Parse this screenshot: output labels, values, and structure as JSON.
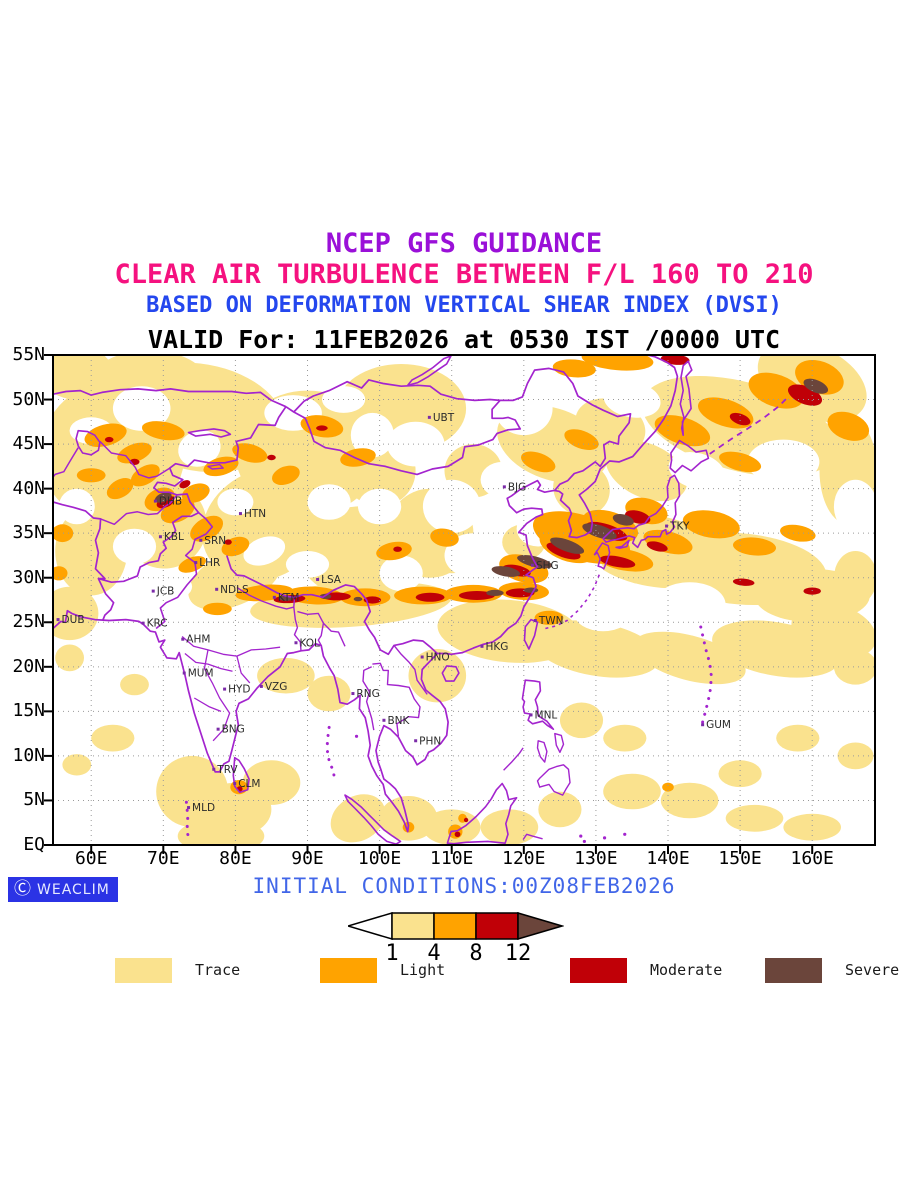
{
  "header": {
    "lines": [
      {
        "text": "NCEP GFS GUIDANCE",
        "color": "#9A10D8"
      },
      {
        "text": "CLEAR AIR TURBULENCE BETWEEN F/L 160 TO 210",
        "color": "#F5117F"
      },
      {
        "text": "BASED ON DEFORMATION VERTICAL SHEAR INDEX (DVSI)",
        "color": "#2447EE"
      },
      {
        "text": "VALID For: 11FEB2026 at 0530 IST /0000 UTC",
        "color": "#000000"
      }
    ]
  },
  "map": {
    "lat_ticks": [
      {
        "label": "55N",
        "value": 55
      },
      {
        "label": "50N",
        "value": 50
      },
      {
        "label": "45N",
        "value": 45
      },
      {
        "label": "40N",
        "value": 40
      },
      {
        "label": "35N",
        "value": 35
      },
      {
        "label": "30N",
        "value": 30
      },
      {
        "label": "25N",
        "value": 25
      },
      {
        "label": "20N",
        "value": 20
      },
      {
        "label": "15N",
        "value": 15
      },
      {
        "label": "10N",
        "value": 10
      },
      {
        "label": "5N",
        "value": 5
      },
      {
        "label": "EQ",
        "value": 0
      }
    ],
    "lon_ticks": [
      {
        "label": "60E",
        "value": 60
      },
      {
        "label": "70E",
        "value": 70
      },
      {
        "label": "80E",
        "value": 80
      },
      {
        "label": "90E",
        "value": 90
      },
      {
        "label": "100E",
        "value": 100
      },
      {
        "label": "110E",
        "value": 110
      },
      {
        "label": "120E",
        "value": 120
      },
      {
        "label": "130E",
        "value": 130
      },
      {
        "label": "140E",
        "value": 140
      },
      {
        "label": "150E",
        "value": 150
      },
      {
        "label": "160E",
        "value": 160
      }
    ],
    "border_color": "#A324CE",
    "grid_color": "#9a9a9a",
    "cities": [
      {
        "code": "UBT",
        "lon": 106.9,
        "lat": 48.0
      },
      {
        "code": "BJG",
        "lon": 117.3,
        "lat": 40.2
      },
      {
        "code": "DHB",
        "lon": 68.9,
        "lat": 38.6
      },
      {
        "code": "HTN",
        "lon": 80.7,
        "lat": 37.2
      },
      {
        "code": "KBL",
        "lon": 69.6,
        "lat": 34.6
      },
      {
        "code": "SRN",
        "lon": 75.2,
        "lat": 34.2
      },
      {
        "code": "LHR",
        "lon": 74.5,
        "lat": 31.7
      },
      {
        "code": "JCB",
        "lon": 68.6,
        "lat": 28.5
      },
      {
        "code": "NDLS",
        "lon": 77.4,
        "lat": 28.7
      },
      {
        "code": "KTM",
        "lon": 85.4,
        "lat": 27.8
      },
      {
        "code": "LSA",
        "lon": 91.4,
        "lat": 29.8
      },
      {
        "code": "DUB",
        "lon": 55.4,
        "lat": 25.3
      },
      {
        "code": "KRC",
        "lon": 67.2,
        "lat": 24.9
      },
      {
        "code": "AHM",
        "lon": 72.7,
        "lat": 23.1
      },
      {
        "code": "KOL",
        "lon": 88.4,
        "lat": 22.7
      },
      {
        "code": "HNO",
        "lon": 105.9,
        "lat": 21.1
      },
      {
        "code": "MUM",
        "lon": 72.9,
        "lat": 19.3
      },
      {
        "code": "HYD",
        "lon": 78.5,
        "lat": 17.5
      },
      {
        "code": "VZG",
        "lon": 83.6,
        "lat": 17.8
      },
      {
        "code": "RNG",
        "lon": 96.3,
        "lat": 17.0
      },
      {
        "code": "BNK",
        "lon": 100.6,
        "lat": 14.0
      },
      {
        "code": "PHN",
        "lon": 105.0,
        "lat": 11.7
      },
      {
        "code": "BNG",
        "lon": 77.6,
        "lat": 13.0
      },
      {
        "code": "TRV",
        "lon": 77.0,
        "lat": 8.5
      },
      {
        "code": "CLM",
        "lon": 79.9,
        "lat": 6.9
      },
      {
        "code": "MLD",
        "lon": 73.5,
        "lat": 4.2
      },
      {
        "code": "SHG",
        "lon": 121.2,
        "lat": 31.4
      },
      {
        "code": "TKY",
        "lon": 139.8,
        "lat": 35.8
      },
      {
        "code": "TWN",
        "lon": 121.6,
        "lat": 25.2
      },
      {
        "code": "HKG",
        "lon": 114.2,
        "lat": 22.3
      },
      {
        "code": "MNL",
        "lon": 121.0,
        "lat": 14.6
      },
      {
        "code": "GUM",
        "lon": 144.8,
        "lat": 13.5
      }
    ]
  },
  "severity": {
    "levels": [
      {
        "label": "Trace",
        "color": "#FAE28E",
        "range": "1-4"
      },
      {
        "label": "Light",
        "color": "#FFA300",
        "range": "4-8"
      },
      {
        "label": "Moderate",
        "color": "#C00007",
        "range": "8-12"
      },
      {
        "label": "Severe",
        "color": "#6B453B",
        "range": ">12"
      }
    ]
  },
  "colorbar": {
    "values": [
      "1",
      "4",
      "8",
      "12"
    ]
  },
  "footer": {
    "initial_conditions": "INITIAL CONDITIONS:00Z08FEB2026",
    "initial_conditions_color": "#4166E8",
    "logo_text": "WEACLIM",
    "logo_bg": "#2B33E5"
  },
  "turbulence_regions": {
    "trace": [
      [
        63,
        44,
        10,
        8,
        -20
      ],
      [
        75,
        48,
        12,
        6,
        10
      ],
      [
        90,
        44,
        10,
        7,
        0
      ],
      [
        103,
        49,
        9,
        5,
        0
      ],
      [
        84,
        36,
        9,
        6,
        -30
      ],
      [
        97,
        33,
        8,
        5,
        -10
      ],
      [
        107,
        35,
        6,
        5,
        0
      ],
      [
        96,
        27,
        14,
        2.5,
        -4
      ],
      [
        80,
        30,
        7,
        3,
        -25
      ],
      [
        70,
        36,
        6,
        5,
        -30
      ],
      [
        60,
        33,
        5,
        5,
        0
      ],
      [
        57,
        26,
        4,
        3,
        0
      ],
      [
        124,
        45,
        8,
        4,
        20
      ],
      [
        137,
        42,
        6,
        3,
        25
      ],
      [
        150,
        47,
        14,
        5,
        15
      ],
      [
        160,
        52,
        8,
        4,
        25
      ],
      [
        138,
        33,
        10,
        4,
        10
      ],
      [
        150,
        31,
        12,
        4,
        5
      ],
      [
        160,
        28,
        8,
        3,
        0
      ],
      [
        118,
        24,
        10,
        3.5,
        5
      ],
      [
        130,
        22,
        9,
        3,
        10
      ],
      [
        143,
        21,
        8,
        2.5,
        15
      ],
      [
        155,
        22,
        9,
        3,
        10
      ],
      [
        163,
        24,
        6,
        3,
        15
      ],
      [
        108,
        19,
        4,
        3,
        0
      ],
      [
        87,
        19,
        4,
        2,
        0
      ],
      [
        93,
        17,
        3,
        2,
        0
      ],
      [
        63,
        12,
        3,
        1.5,
        0
      ],
      [
        58,
        9,
        2,
        1.2,
        0
      ],
      [
        74,
        6,
        5,
        4,
        0
      ],
      [
        80,
        4,
        5,
        3,
        0
      ],
      [
        85,
        7,
        4,
        2.5,
        0
      ],
      [
        78,
        1,
        6,
        2,
        0
      ],
      [
        97,
        3,
        4,
        2.5,
        -30
      ],
      [
        104,
        3,
        4,
        2.5,
        0
      ],
      [
        110,
        2,
        4,
        2,
        0
      ],
      [
        118,
        2,
        4,
        2,
        0
      ],
      [
        125,
        4,
        3,
        2,
        0
      ],
      [
        135,
        6,
        4,
        2,
        0
      ],
      [
        143,
        5,
        4,
        2,
        0
      ],
      [
        152,
        3,
        4,
        1.5,
        0
      ],
      [
        160,
        2,
        4,
        1.5,
        0
      ],
      [
        150,
        8,
        3,
        1.5,
        0
      ],
      [
        158,
        12,
        3,
        1.5,
        0
      ],
      [
        166,
        10,
        2.5,
        1.5,
        0
      ],
      [
        166,
        20,
        3,
        2,
        0
      ],
      [
        166,
        30,
        3,
        3,
        0
      ],
      [
        128,
        14,
        3,
        2,
        0
      ],
      [
        134,
        12,
        3,
        1.5,
        0
      ],
      [
        110,
        33,
        3,
        2.5,
        0
      ],
      [
        132,
        47,
        5,
        3,
        20
      ],
      [
        58,
        53,
        5,
        3,
        0
      ],
      [
        68,
        52,
        8,
        3.5,
        0
      ],
      [
        100,
        42,
        5,
        4,
        0
      ],
      [
        113,
        42,
        4,
        3,
        0
      ],
      [
        128,
        40,
        4,
        3,
        30
      ],
      [
        120,
        34,
        3,
        2,
        0
      ],
      [
        165,
        42,
        4,
        6,
        0
      ],
      [
        57,
        21,
        2,
        1.5,
        0
      ],
      [
        66,
        18,
        2,
        1.2,
        0
      ]
    ],
    "white_gaps": [
      [
        67,
        49,
        4,
        2.5,
        0
      ],
      [
        75,
        44.5,
        3,
        2,
        -20
      ],
      [
        88,
        48.5,
        4,
        2,
        0
      ],
      [
        99,
        46,
        3,
        2.5,
        0
      ],
      [
        105,
        45,
        4,
        2.5,
        0
      ],
      [
        93,
        38.5,
        3,
        2,
        0
      ],
      [
        90,
        31.5,
        3,
        1.5,
        0
      ],
      [
        103,
        30.5,
        3,
        2,
        0
      ],
      [
        113,
        32.5,
        4,
        2.5,
        0
      ],
      [
        110,
        38,
        4,
        3,
        0
      ],
      [
        122,
        35.5,
        3,
        2,
        0
      ],
      [
        117,
        41,
        3,
        2,
        0
      ],
      [
        144,
        42,
        4,
        2,
        15
      ],
      [
        152,
        38,
        6,
        3,
        0
      ],
      [
        143,
        27,
        5,
        2.5,
        0
      ],
      [
        131,
        26,
        4,
        2,
        0
      ],
      [
        156,
        43,
        5,
        2.5,
        0
      ],
      [
        166,
        38,
        3,
        3,
        0
      ],
      [
        60,
        46.5,
        3,
        1.5,
        0
      ],
      [
        58,
        38,
        2.5,
        2,
        0
      ],
      [
        66,
        33.5,
        3,
        2,
        0
      ],
      [
        71,
        29,
        3,
        1.5,
        0
      ],
      [
        84,
        33,
        3,
        1.5,
        -20
      ],
      [
        80,
        38.5,
        2.5,
        1.5,
        0
      ],
      [
        95,
        50,
        3,
        1.5,
        0
      ],
      [
        120,
        49,
        4,
        3,
        0
      ],
      [
        135,
        50,
        4,
        2,
        10
      ],
      [
        128,
        31,
        3,
        1.5,
        0
      ],
      [
        100,
        38,
        3,
        2,
        0
      ]
    ],
    "light": [
      [
        62,
        46,
        3,
        1.2,
        -15
      ],
      [
        66,
        44,
        2.5,
        1,
        -20
      ],
      [
        70,
        46.5,
        3,
        1,
        10
      ],
      [
        64,
        40,
        2,
        1,
        -30
      ],
      [
        67.5,
        41.5,
        2.2,
        1,
        -30
      ],
      [
        60,
        41.5,
        2,
        0.8,
        0
      ],
      [
        69.5,
        38.8,
        2.2,
        1.2,
        -25
      ],
      [
        72,
        37.5,
        2.5,
        1.2,
        -25
      ],
      [
        74.5,
        39.5,
        2,
        1,
        -20
      ],
      [
        78,
        42.5,
        2.5,
        1,
        -15
      ],
      [
        82,
        44,
        2.5,
        1,
        15
      ],
      [
        87,
        41.5,
        2,
        1,
        -20
      ],
      [
        92,
        47,
        3,
        1.2,
        10
      ],
      [
        97,
        43.5,
        2.5,
        1,
        -10
      ],
      [
        76,
        35.5,
        2.5,
        1.2,
        -30
      ],
      [
        80,
        33.5,
        2,
        1,
        -20
      ],
      [
        84,
        28.3,
        4,
        0.9,
        -5
      ],
      [
        91,
        28,
        4,
        1,
        3
      ],
      [
        98,
        27.8,
        3.5,
        1,
        0
      ],
      [
        106,
        28,
        4,
        1,
        0
      ],
      [
        113,
        28.2,
        4,
        1,
        0
      ],
      [
        120,
        28.5,
        3.5,
        1,
        3
      ],
      [
        102,
        33,
        2.5,
        1,
        -10
      ],
      [
        109,
        34.5,
        2,
        1,
        10
      ],
      [
        120,
        31,
        3.5,
        1.5,
        15
      ],
      [
        126,
        33.5,
        4,
        1.6,
        20
      ],
      [
        132,
        35.8,
        4,
        1.6,
        18
      ],
      [
        137,
        37.5,
        3,
        1.4,
        15
      ],
      [
        128,
        34.5,
        7,
        2.5,
        18
      ],
      [
        134,
        32,
        4,
        1.2,
        10
      ],
      [
        140,
        34,
        3.5,
        1.2,
        15
      ],
      [
        146,
        36,
        4,
        1.5,
        10
      ],
      [
        142,
        46.5,
        4,
        1.5,
        18
      ],
      [
        148,
        48.5,
        4,
        1.5,
        18
      ],
      [
        155,
        51,
        4,
        1.8,
        20
      ],
      [
        161,
        52.5,
        3.5,
        1.8,
        20
      ],
      [
        150,
        43,
        3,
        1,
        15
      ],
      [
        133,
        54.5,
        5,
        1.2,
        5
      ],
      [
        127,
        53.5,
        3,
        1,
        5
      ],
      [
        165,
        47,
        3,
        1.5,
        20
      ],
      [
        122,
        43,
        2.5,
        1,
        20
      ],
      [
        128,
        45.5,
        2.5,
        1,
        20
      ],
      [
        123.5,
        25.5,
        2,
        0.8,
        0
      ],
      [
        80.5,
        6.5,
        1.2,
        0.8,
        0
      ],
      [
        110.5,
        1.5,
        1,
        0.8,
        0
      ],
      [
        111.5,
        3,
        0.6,
        0.5,
        0
      ],
      [
        140,
        6.5,
        0.8,
        0.5,
        0
      ],
      [
        56,
        35,
        1.5,
        1,
        0
      ],
      [
        55.5,
        30.5,
        1.2,
        0.8,
        0
      ],
      [
        74,
        31.5,
        2,
        0.8,
        -20
      ],
      [
        77.5,
        26.5,
        2,
        0.7,
        0
      ],
      [
        152,
        33.5,
        3,
        1,
        5
      ],
      [
        158,
        35,
        2.5,
        0.9,
        10
      ],
      [
        104,
        2,
        0.8,
        0.6,
        0
      ]
    ],
    "moderate": [
      [
        70.3,
        38.5,
        1.3,
        0.6,
        -25
      ],
      [
        73,
        40.5,
        0.8,
        0.4,
        -25
      ],
      [
        66,
        43,
        0.7,
        0.35,
        0
      ],
      [
        62.5,
        45.5,
        0.6,
        0.3,
        0
      ],
      [
        87.5,
        27.6,
        2.2,
        0.45,
        -3
      ],
      [
        94,
        27.9,
        2,
        0.45,
        0
      ],
      [
        99,
        27.5,
        1.2,
        0.4,
        0
      ],
      [
        107,
        27.8,
        2,
        0.5,
        0
      ],
      [
        113.5,
        28,
        2.5,
        0.5,
        0
      ],
      [
        119.5,
        28.3,
        2,
        0.5,
        0
      ],
      [
        119,
        30.8,
        2,
        0.6,
        12
      ],
      [
        125.5,
        33,
        2.5,
        0.7,
        20
      ],
      [
        131.5,
        35.2,
        3,
        0.8,
        18
      ],
      [
        135.8,
        36.8,
        1.8,
        0.7,
        15
      ],
      [
        133,
        31.8,
        2.5,
        0.6,
        10
      ],
      [
        138.5,
        33.5,
        1.5,
        0.5,
        15
      ],
      [
        159,
        50.5,
        2.5,
        1,
        22
      ],
      [
        150,
        47.8,
        1.5,
        0.6,
        20
      ],
      [
        141,
        54.5,
        2,
        0.6,
        5
      ],
      [
        92,
        46.8,
        0.8,
        0.3,
        0
      ],
      [
        85,
        43.5,
        0.6,
        0.3,
        0
      ],
      [
        79,
        34,
        0.5,
        0.3,
        0
      ],
      [
        102.5,
        33.2,
        0.6,
        0.3,
        0
      ],
      [
        150.5,
        29.5,
        1.5,
        0.4,
        5
      ],
      [
        160,
        28.5,
        1.2,
        0.4,
        0
      ],
      [
        80.6,
        6.3,
        0.4,
        0.3,
        0
      ],
      [
        110.8,
        1.2,
        0.4,
        0.3,
        0
      ],
      [
        112,
        2.8,
        0.3,
        0.25,
        0
      ]
    ],
    "severe": [
      [
        117.5,
        30.7,
        2,
        0.55,
        10
      ],
      [
        121.5,
        31.8,
        2.5,
        0.6,
        14
      ],
      [
        126,
        33.6,
        2.5,
        0.65,
        20
      ],
      [
        130.5,
        35.2,
        2.5,
        0.7,
        18
      ],
      [
        133.8,
        36.5,
        1.5,
        0.6,
        15
      ],
      [
        70,
        39,
        1.2,
        0.5,
        -20
      ],
      [
        160.5,
        51.5,
        1.8,
        0.7,
        22
      ],
      [
        87,
        27.7,
        1,
        0.3,
        0
      ],
      [
        92.5,
        27.9,
        0.8,
        0.3,
        0
      ],
      [
        116,
        28.3,
        1.2,
        0.35,
        0
      ],
      [
        121,
        28.6,
        1,
        0.3,
        0
      ],
      [
        97,
        27.6,
        0.6,
        0.25,
        0
      ]
    ]
  }
}
